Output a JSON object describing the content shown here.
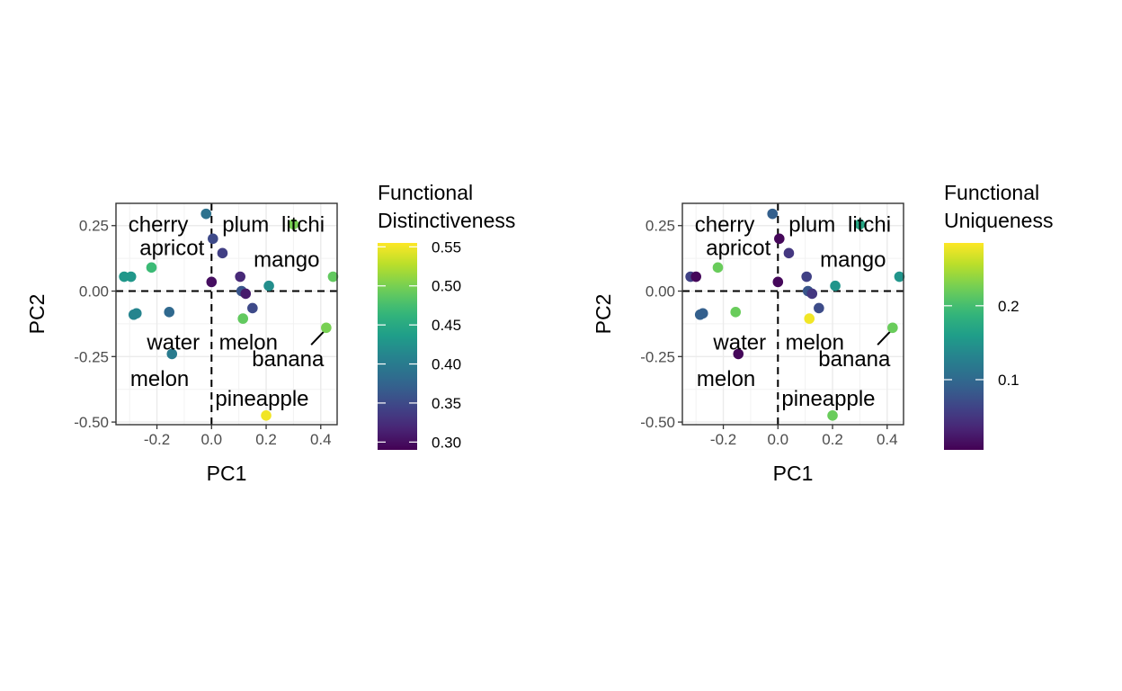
{
  "chart_data": [
    {
      "type": "scatter",
      "title": "",
      "xlabel": "PC1",
      "ylabel": "PC2",
      "xlim": [
        -0.35,
        0.46
      ],
      "ylim": [
        -0.51,
        0.335
      ],
      "xticks": [
        -0.2,
        0.0,
        0.2,
        0.4
      ],
      "xtick_labels": [
        "-0.2",
        "0.0",
        "0.2",
        "0.4"
      ],
      "yticks": [
        0.25,
        0.0,
        -0.25,
        -0.5
      ],
      "ytick_labels": [
        "0.25",
        "0.00",
        "-0.25",
        "-0.50"
      ],
      "grid": true,
      "reference_lines": {
        "x": 0,
        "y": 0,
        "style": "dashed"
      },
      "legend": {
        "title_lines": [
          "Functional",
          "Distinctiveness"
        ],
        "type": "colorbar",
        "range": [
          0.29,
          0.555
        ],
        "ticks": [
          0.3,
          0.35,
          0.4,
          0.45,
          0.5,
          0.55
        ],
        "tick_labels": [
          "0.30",
          "0.35",
          "0.40",
          "0.45",
          "0.50",
          "0.55"
        ],
        "placement": "right"
      },
      "points": [
        {
          "x": -0.32,
          "y": 0.055,
          "value": 0.43
        },
        {
          "x": -0.295,
          "y": 0.055,
          "value": 0.43
        },
        {
          "x": -0.285,
          "y": -0.09,
          "value": 0.41
        },
        {
          "x": -0.275,
          "y": -0.085,
          "value": 0.41
        },
        {
          "x": -0.22,
          "y": 0.09,
          "value": 0.47
        },
        {
          "x": -0.155,
          "y": -0.08,
          "value": 0.38
        },
        {
          "x": -0.145,
          "y": -0.24,
          "value": 0.4
        },
        {
          "x": -0.02,
          "y": 0.295,
          "value": 0.39
        },
        {
          "x": 0.005,
          "y": 0.2,
          "value": 0.35
        },
        {
          "x": 0.04,
          "y": 0.145,
          "value": 0.34
        },
        {
          "x": 0.0,
          "y": 0.035,
          "value": 0.3
        },
        {
          "x": 0.105,
          "y": 0.055,
          "value": 0.32
        },
        {
          "x": 0.11,
          "y": 0.0,
          "value": 0.36
        },
        {
          "x": 0.125,
          "y": -0.01,
          "value": 0.31
        },
        {
          "x": 0.15,
          "y": -0.065,
          "value": 0.35
        },
        {
          "x": 0.115,
          "y": -0.105,
          "value": 0.49
        },
        {
          "x": 0.21,
          "y": 0.02,
          "value": 0.42
        },
        {
          "x": 0.3,
          "y": 0.255,
          "value": 0.5
        },
        {
          "x": 0.42,
          "y": -0.14,
          "value": 0.5
        },
        {
          "x": 0.445,
          "y": 0.055,
          "value": 0.49
        },
        {
          "x": 0.2,
          "y": -0.475,
          "value": 0.55
        }
      ],
      "labels": [
        {
          "text": "cherry",
          "x": -0.195,
          "y": 0.255
        },
        {
          "text": "apricot",
          "x": -0.145,
          "y": 0.165
        },
        {
          "text": "plum",
          "x": 0.125,
          "y": 0.255
        },
        {
          "text": "litchi",
          "x": 0.335,
          "y": 0.255
        },
        {
          "text": "mango",
          "x": 0.275,
          "y": 0.12
        },
        {
          "text": "water",
          "x": -0.14,
          "y": -0.195
        },
        {
          "text": "melon",
          "x": 0.135,
          "y": -0.195
        },
        {
          "text": "banana",
          "x": 0.28,
          "y": -0.26
        },
        {
          "text": "melon",
          "x": -0.19,
          "y": -0.335
        },
        {
          "text": "pineapple",
          "x": 0.185,
          "y": -0.41
        }
      ],
      "segments": [
        {
          "x1": 0.365,
          "y1": -0.205,
          "x2": 0.42,
          "y2": -0.145
        }
      ]
    },
    {
      "type": "scatter",
      "title": "",
      "xlabel": "PC1",
      "ylabel": "PC2",
      "xlim": [
        -0.35,
        0.46
      ],
      "ylim": [
        -0.51,
        0.335
      ],
      "xticks": [
        -0.2,
        0.0,
        0.2,
        0.4
      ],
      "xtick_labels": [
        "-0.2",
        "0.0",
        "0.2",
        "0.4"
      ],
      "yticks": [
        0.25,
        0.0,
        -0.25,
        -0.5
      ],
      "ytick_labels": [
        "0.25",
        "0.00",
        "-0.25",
        "-0.50"
      ],
      "grid": true,
      "reference_lines": {
        "x": 0,
        "y": 0,
        "style": "dashed"
      },
      "legend": {
        "title_lines": [
          "Functional",
          "Uniqueness"
        ],
        "type": "colorbar",
        "range": [
          0.005,
          0.285
        ],
        "ticks": [
          0.1,
          0.2
        ],
        "tick_labels": [
          "0.1",
          "0.2"
        ],
        "placement": "right"
      },
      "points": [
        {
          "x": -0.32,
          "y": 0.055,
          "value": 0.06
        },
        {
          "x": -0.3,
          "y": 0.055,
          "value": 0.01
        },
        {
          "x": -0.285,
          "y": -0.09,
          "value": 0.09
        },
        {
          "x": -0.275,
          "y": -0.085,
          "value": 0.09
        },
        {
          "x": -0.22,
          "y": 0.09,
          "value": 0.22
        },
        {
          "x": -0.155,
          "y": -0.08,
          "value": 0.22
        },
        {
          "x": -0.145,
          "y": -0.24,
          "value": 0.01
        },
        {
          "x": -0.02,
          "y": 0.295,
          "value": 0.09
        },
        {
          "x": 0.005,
          "y": 0.2,
          "value": 0.01
        },
        {
          "x": 0.04,
          "y": 0.145,
          "value": 0.05
        },
        {
          "x": 0.0,
          "y": 0.035,
          "value": 0.01
        },
        {
          "x": 0.105,
          "y": 0.055,
          "value": 0.06
        },
        {
          "x": 0.11,
          "y": 0.0,
          "value": 0.08
        },
        {
          "x": 0.125,
          "y": -0.01,
          "value": 0.05
        },
        {
          "x": 0.15,
          "y": -0.065,
          "value": 0.07
        },
        {
          "x": 0.115,
          "y": -0.105,
          "value": 0.28
        },
        {
          "x": 0.21,
          "y": 0.02,
          "value": 0.15
        },
        {
          "x": 0.3,
          "y": 0.255,
          "value": 0.17
        },
        {
          "x": 0.42,
          "y": -0.14,
          "value": 0.22
        },
        {
          "x": 0.445,
          "y": 0.055,
          "value": 0.15
        },
        {
          "x": 0.2,
          "y": -0.475,
          "value": 0.22
        }
      ],
      "labels": [
        {
          "text": "cherry",
          "x": -0.195,
          "y": 0.255
        },
        {
          "text": "apricot",
          "x": -0.145,
          "y": 0.165
        },
        {
          "text": "plum",
          "x": 0.125,
          "y": 0.255
        },
        {
          "text": "litchi",
          "x": 0.335,
          "y": 0.255
        },
        {
          "text": "mango",
          "x": 0.275,
          "y": 0.12
        },
        {
          "text": "water",
          "x": -0.14,
          "y": -0.195
        },
        {
          "text": "melon",
          "x": 0.135,
          "y": -0.195
        },
        {
          "text": "banana",
          "x": 0.28,
          "y": -0.26
        },
        {
          "text": "melon",
          "x": -0.19,
          "y": -0.335
        },
        {
          "text": "pineapple",
          "x": 0.185,
          "y": -0.41
        }
      ],
      "segments": [
        {
          "x1": 0.365,
          "y1": -0.205,
          "x2": 0.42,
          "y2": -0.145
        }
      ]
    }
  ]
}
